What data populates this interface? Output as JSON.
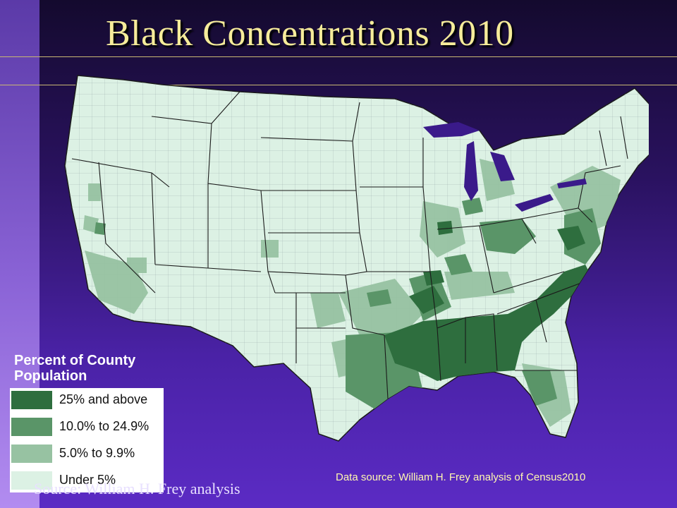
{
  "title": "Black Concentrations 2010",
  "legend": {
    "title": "Percent of County Population",
    "items": [
      {
        "label": "25% and above",
        "color": "#2e6e3e"
      },
      {
        "label": "10.0% to 24.9%",
        "color": "#5a9568"
      },
      {
        "label": "5.0% to 9.9%",
        "color": "#97c2a2"
      },
      {
        "label": "Under 5%",
        "color": "#dcf1e4"
      }
    ]
  },
  "source_serif": "Source: William H. Frey analysis",
  "data_source": "Data source: William H. Frey analysis of Census2010",
  "colors": {
    "background": "#3a1a8a",
    "title": "#f6ec9a",
    "map_base": "#dcf1e4",
    "state_border": "#1a1a1a"
  }
}
